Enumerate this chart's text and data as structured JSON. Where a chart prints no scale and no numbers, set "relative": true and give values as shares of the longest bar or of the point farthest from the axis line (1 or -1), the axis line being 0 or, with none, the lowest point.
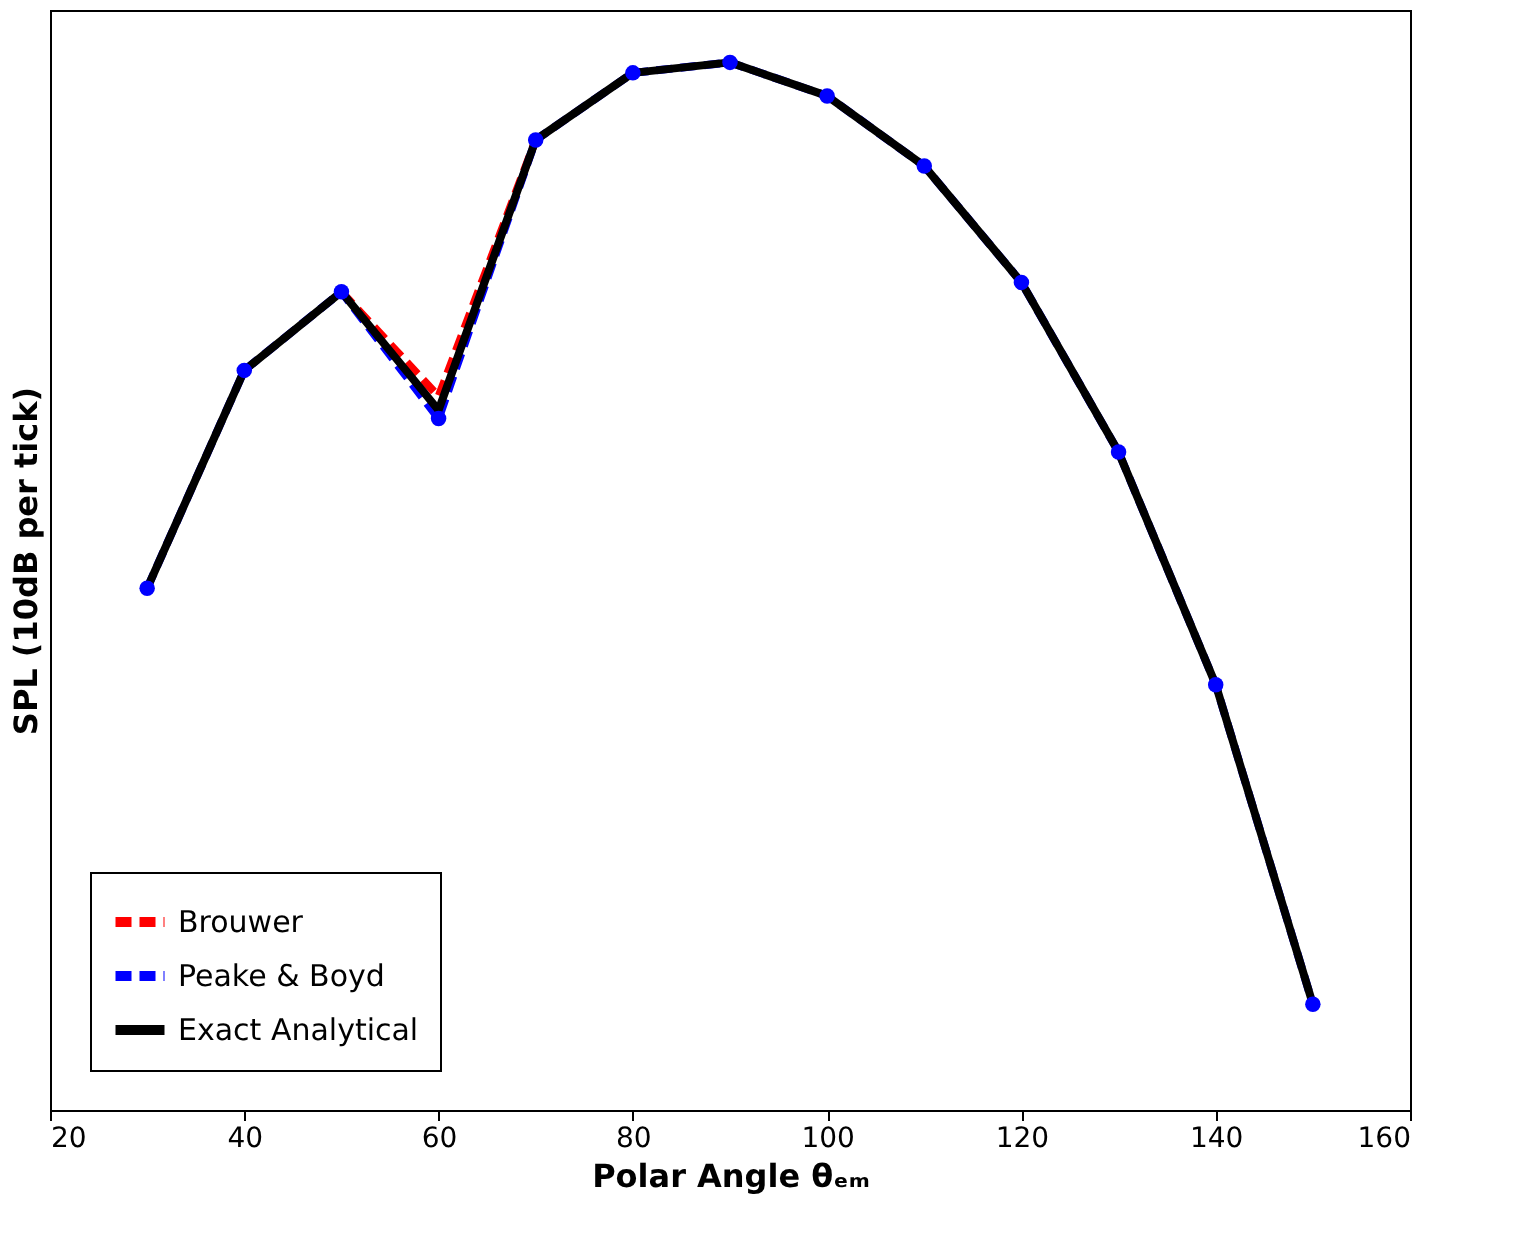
{
  "chart_data": {
    "type": "line",
    "xlabel": "Polar Angle θₑₘ",
    "ylabel": "SPL (10dB per tick)",
    "relative": true,
    "xlim": [
      20,
      160
    ],
    "xticks": [
      20,
      40,
      60,
      80,
      100,
      120,
      140,
      160
    ],
    "x": [
      30,
      40,
      50,
      60,
      70,
      80,
      90,
      100,
      110,
      120,
      130,
      140,
      150
    ],
    "legend": "bottom left",
    "grid": false,
    "series": [
      {
        "name": "Brouwer",
        "color": "#ff0000",
        "line_style": "dashed",
        "marker": "none",
        "values": [
          null,
          null,
          0.781,
          0.681,
          0.926,
          null,
          null,
          null,
          null,
          null,
          null,
          null,
          null
        ]
      },
      {
        "name": "Peake & Boyd",
        "color": "#0000ff",
        "line_style": "dashed",
        "marker": "circle",
        "values": [
          0.498,
          0.706,
          0.781,
          0.66,
          0.926,
          0.99,
          1,
          0.968,
          0.901,
          0.79,
          0.628,
          0.406,
          0.101
        ]
      },
      {
        "name": "Exact Analytical",
        "color": "#000000",
        "line_style": "solid",
        "marker": "none",
        "values": [
          0.498,
          0.706,
          0.781,
          0.668,
          0.926,
          0.99,
          1,
          0.968,
          0.901,
          0.79,
          0.628,
          0.406,
          0.101
        ]
      }
    ]
  }
}
